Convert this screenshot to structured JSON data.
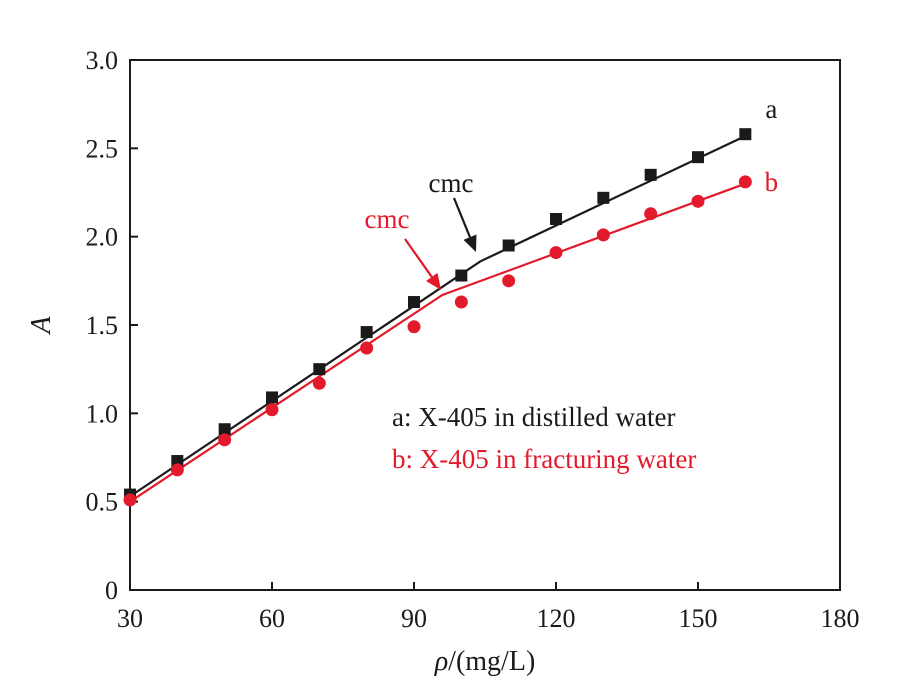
{
  "chart_data": {
    "type": "line",
    "title": "",
    "xlabel": "ρ/(mg/L)",
    "xlabel_symbol": "ρ",
    "xlabel_unit": "/(mg/L)",
    "ylabel": "A",
    "xlim": [
      30,
      180
    ],
    "ylim": [
      0,
      3.0
    ],
    "xticks": [
      30,
      60,
      90,
      120,
      150,
      180
    ],
    "xtick_labels": [
      "30",
      "60",
      "90",
      "120",
      "150",
      "180"
    ],
    "yticks": [
      0,
      0.5,
      1.0,
      1.5,
      2.0,
      2.5,
      3.0
    ],
    "ytick_labels": [
      "0",
      "0.5",
      "1.0",
      "1.5",
      "2.0",
      "2.5",
      "3.0"
    ],
    "grid": false,
    "legend_position": "bottom-right",
    "series": [
      {
        "key": "a",
        "label": "a",
        "legend": "a: X-405 in distilled water",
        "color": "#1a1a1a",
        "marker": "square",
        "x": [
          30,
          40,
          50,
          60,
          70,
          80,
          90,
          100,
          110,
          120,
          130,
          140,
          150,
          160
        ],
        "y": [
          0.54,
          0.73,
          0.91,
          1.09,
          1.25,
          1.46,
          1.63,
          1.78,
          1.95,
          2.1,
          2.22,
          2.35,
          2.45,
          2.58
        ],
        "fit_x": [
          30,
          104,
          160
        ],
        "fit_y": [
          0.53,
          1.86,
          2.57
        ]
      },
      {
        "key": "b",
        "label": "b",
        "legend": "b: X-405 in fracturing water",
        "color": "#e31a2b",
        "marker": "circle",
        "x": [
          30,
          40,
          50,
          60,
          70,
          80,
          90,
          100,
          110,
          120,
          130,
          140,
          150,
          160
        ],
        "y": [
          0.51,
          0.68,
          0.85,
          1.02,
          1.17,
          1.37,
          1.49,
          1.63,
          1.75,
          1.91,
          2.01,
          2.13,
          2.2,
          2.31
        ],
        "fit_x": [
          30,
          96,
          160
        ],
        "fit_y": [
          0.5,
          1.67,
          2.3
        ]
      }
    ],
    "annotations": [
      {
        "text": "cmc",
        "color": "#1a1a1a",
        "series": "a",
        "point_x": 104,
        "point_y": 1.86
      },
      {
        "text": "cmc",
        "color": "#e31a2b",
        "series": "b",
        "point_x": 96,
        "point_y": 1.67
      }
    ]
  }
}
